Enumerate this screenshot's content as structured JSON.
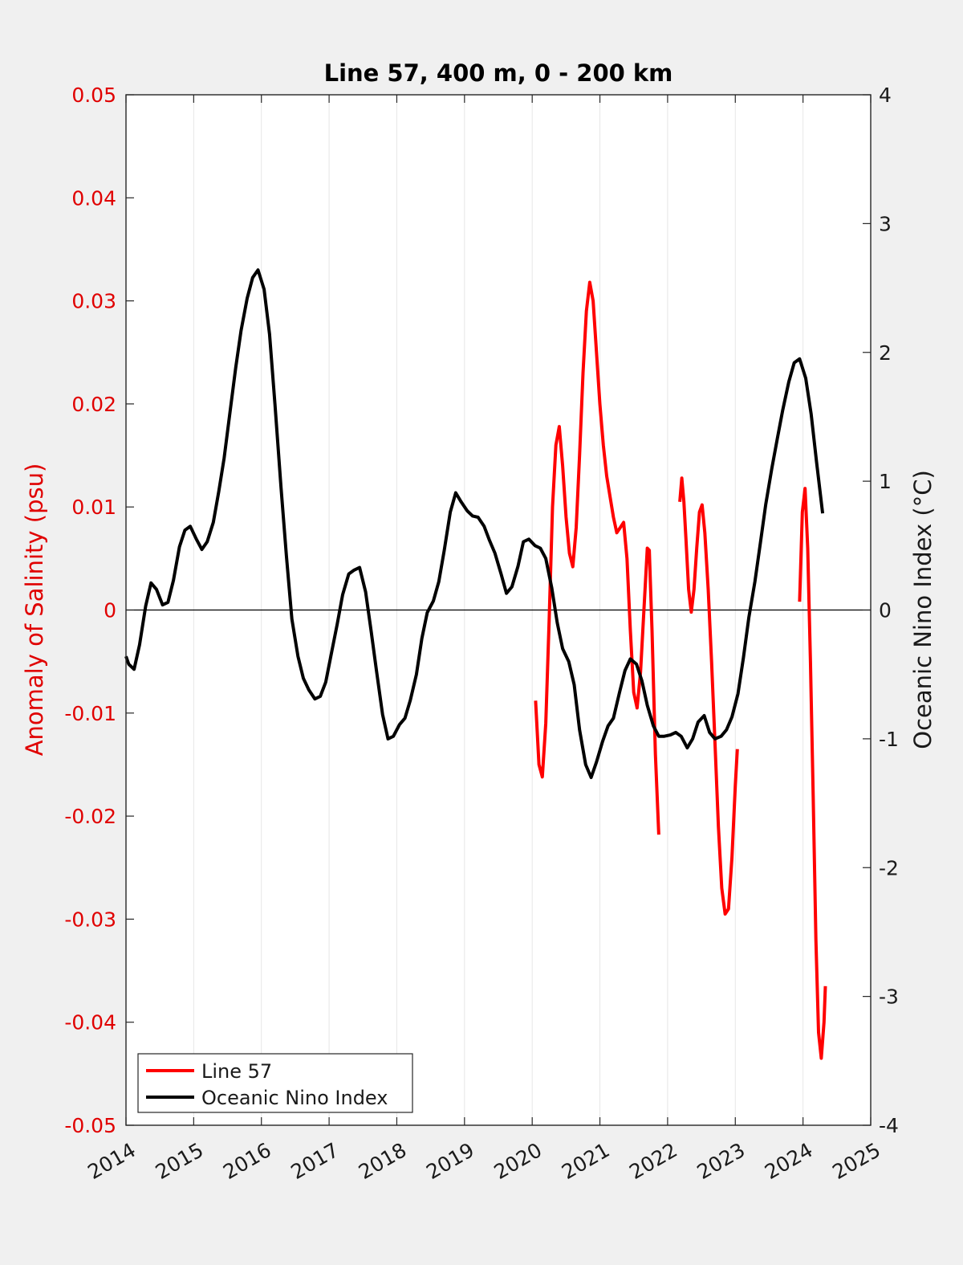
{
  "chart_data": {
    "type": "line",
    "title": "Line 57, 400 m, 0 - 200 km",
    "xlim": [
      2014,
      2025
    ],
    "x_ticks": [
      "2014",
      "2015",
      "2016",
      "2017",
      "2018",
      "2019",
      "2020",
      "2021",
      "2022",
      "2023",
      "2024",
      "2025"
    ],
    "y_left": {
      "label": "Anomaly of Salinity (psu)",
      "lim": [
        -0.05,
        0.05
      ],
      "ticks": [
        "0.05",
        "0.04",
        "0.03",
        "0.02",
        "0.01",
        "0",
        "-0.01",
        "-0.02",
        "-0.03",
        "-0.04",
        "-0.05"
      ],
      "tick_values": [
        0.05,
        0.04,
        0.03,
        0.02,
        0.01,
        0,
        -0.01,
        -0.02,
        -0.03,
        -0.04,
        -0.05
      ],
      "color": "#e00000"
    },
    "y_right": {
      "label": "Oceanic Nino Index (°C)",
      "lim": [
        -4,
        4
      ],
      "ticks": [
        "4",
        "3",
        "2",
        "1",
        "0",
        "-1",
        "-2",
        "-3",
        "-4"
      ],
      "tick_values": [
        4,
        3,
        2,
        1,
        0,
        -1,
        -2,
        -3,
        -4
      ],
      "color": "#1a1a1a"
    },
    "grid": "vertical",
    "legend_position": "bottom-left",
    "series": [
      {
        "name": "Line 57",
        "axis": "left",
        "color": "#ff0000",
        "segments": [
          [
            [
              2020.05,
              -0.0088
            ],
            [
              2020.1,
              -0.015
            ],
            [
              2020.15,
              -0.0162
            ],
            [
              2020.2,
              -0.011
            ],
            [
              2020.25,
              -0.001
            ],
            [
              2020.3,
              0.01
            ],
            [
              2020.35,
              0.016
            ],
            [
              2020.4,
              0.0178
            ],
            [
              2020.45,
              0.014
            ],
            [
              2020.5,
              0.009
            ],
            [
              2020.55,
              0.0055
            ],
            [
              2020.6,
              0.0042
            ],
            [
              2020.65,
              0.008
            ],
            [
              2020.7,
              0.015
            ],
            [
              2020.75,
              0.023
            ],
            [
              2020.8,
              0.029
            ],
            [
              2020.85,
              0.0318
            ],
            [
              2020.9,
              0.03
            ],
            [
              2020.95,
              0.025
            ],
            [
              2021.0,
              0.02
            ],
            [
              2021.05,
              0.016
            ],
            [
              2021.1,
              0.013
            ],
            [
              2021.15,
              0.011
            ],
            [
              2021.2,
              0.009
            ],
            [
              2021.25,
              0.0075
            ],
            [
              2021.3,
              0.008
            ],
            [
              2021.35,
              0.0085
            ],
            [
              2021.4,
              0.005
            ],
            [
              2021.45,
              -0.002
            ],
            [
              2021.5,
              -0.008
            ],
            [
              2021.55,
              -0.0095
            ],
            [
              2021.6,
              -0.006
            ],
            [
              2021.65,
              0.0
            ],
            [
              2021.7,
              0.006
            ],
            [
              2021.73,
              0.0058
            ],
            [
              2021.77,
              -0.002
            ],
            [
              2021.82,
              -0.014
            ],
            [
              2021.87,
              -0.0218
            ]
          ],
          [
            [
              2022.18,
              0.0105
            ],
            [
              2022.21,
              0.0128
            ],
            [
              2022.24,
              0.0105
            ],
            [
              2022.27,
              0.007
            ],
            [
              2022.31,
              0.002
            ],
            [
              2022.35,
              -0.0002
            ],
            [
              2022.39,
              0.002
            ],
            [
              2022.43,
              0.006
            ],
            [
              2022.47,
              0.0095
            ],
            [
              2022.51,
              0.0102
            ],
            [
              2022.55,
              0.0075
            ],
            [
              2022.6,
              0.002
            ],
            [
              2022.65,
              -0.005
            ],
            [
              2022.7,
              -0.013
            ],
            [
              2022.75,
              -0.021
            ],
            [
              2022.8,
              -0.027
            ],
            [
              2022.85,
              -0.0295
            ],
            [
              2022.9,
              -0.029
            ],
            [
              2022.95,
              -0.024
            ],
            [
              2023.0,
              -0.017
            ],
            [
              2023.03,
              -0.0135
            ]
          ],
          [
            [
              2023.95,
              0.0008
            ],
            [
              2023.99,
              0.0095
            ],
            [
              2024.03,
              0.0118
            ],
            [
              2024.07,
              0.006
            ],
            [
              2024.11,
              -0.005
            ],
            [
              2024.15,
              -0.018
            ],
            [
              2024.19,
              -0.032
            ],
            [
              2024.23,
              -0.041
            ],
            [
              2024.27,
              -0.0435
            ],
            [
              2024.31,
              -0.04
            ],
            [
              2024.33,
              -0.0365
            ]
          ]
        ]
      },
      {
        "name": "Oceanic Nino Index",
        "axis": "right",
        "color": "#000000",
        "segments": [
          [
            [
              2014.0,
              -0.36
            ],
            [
              2014.04,
              -0.42
            ],
            [
              2014.12,
              -0.46
            ],
            [
              2014.2,
              -0.27
            ],
            [
              2014.29,
              0.03
            ],
            [
              2014.37,
              0.21
            ],
            [
              2014.45,
              0.16
            ],
            [
              2014.54,
              0.04
            ],
            [
              2014.62,
              0.06
            ],
            [
              2014.7,
              0.23
            ],
            [
              2014.79,
              0.49
            ],
            [
              2014.87,
              0.62
            ],
            [
              2014.95,
              0.65
            ],
            [
              2015.04,
              0.55
            ],
            [
              2015.12,
              0.47
            ],
            [
              2015.2,
              0.53
            ],
            [
              2015.29,
              0.68
            ],
            [
              2015.37,
              0.92
            ],
            [
              2015.45,
              1.18
            ],
            [
              2015.54,
              1.55
            ],
            [
              2015.62,
              1.88
            ],
            [
              2015.7,
              2.17
            ],
            [
              2015.79,
              2.42
            ],
            [
              2015.87,
              2.58
            ],
            [
              2015.95,
              2.64
            ],
            [
              2016.04,
              2.49
            ],
            [
              2016.12,
              2.14
            ],
            [
              2016.2,
              1.6
            ],
            [
              2016.29,
              0.95
            ],
            [
              2016.37,
              0.42
            ],
            [
              2016.45,
              -0.07
            ],
            [
              2016.54,
              -0.36
            ],
            [
              2016.62,
              -0.53
            ],
            [
              2016.7,
              -0.62
            ],
            [
              2016.79,
              -0.69
            ],
            [
              2016.87,
              -0.67
            ],
            [
              2016.95,
              -0.56
            ],
            [
              2017.04,
              -0.32
            ],
            [
              2017.12,
              -0.11
            ],
            [
              2017.2,
              0.12
            ],
            [
              2017.29,
              0.28
            ],
            [
              2017.37,
              0.31
            ],
            [
              2017.45,
              0.33
            ],
            [
              2017.54,
              0.14
            ],
            [
              2017.62,
              -0.16
            ],
            [
              2017.7,
              -0.47
            ],
            [
              2017.79,
              -0.81
            ],
            [
              2017.87,
              -1.0
            ],
            [
              2017.95,
              -0.98
            ],
            [
              2018.04,
              -0.89
            ],
            [
              2018.12,
              -0.84
            ],
            [
              2018.2,
              -0.7
            ],
            [
              2018.29,
              -0.5
            ],
            [
              2018.37,
              -0.22
            ],
            [
              2018.45,
              -0.02
            ],
            [
              2018.54,
              0.07
            ],
            [
              2018.62,
              0.22
            ],
            [
              2018.7,
              0.46
            ],
            [
              2018.79,
              0.76
            ],
            [
              2018.87,
              0.91
            ],
            [
              2018.95,
              0.84
            ],
            [
              2019.04,
              0.77
            ],
            [
              2019.12,
              0.73
            ],
            [
              2019.2,
              0.72
            ],
            [
              2019.29,
              0.65
            ],
            [
              2019.37,
              0.54
            ],
            [
              2019.45,
              0.44
            ],
            [
              2019.54,
              0.28
            ],
            [
              2019.62,
              0.13
            ],
            [
              2019.7,
              0.18
            ],
            [
              2019.79,
              0.34
            ],
            [
              2019.87,
              0.53
            ],
            [
              2019.95,
              0.55
            ],
            [
              2020.04,
              0.5
            ],
            [
              2020.12,
              0.48
            ],
            [
              2020.2,
              0.4
            ],
            [
              2020.29,
              0.17
            ],
            [
              2020.37,
              -0.1
            ],
            [
              2020.45,
              -0.3
            ],
            [
              2020.54,
              -0.4
            ],
            [
              2020.62,
              -0.58
            ],
            [
              2020.7,
              -0.93
            ],
            [
              2020.79,
              -1.2
            ],
            [
              2020.87,
              -1.3
            ],
            [
              2020.95,
              -1.18
            ],
            [
              2021.04,
              -1.02
            ],
            [
              2021.12,
              -0.9
            ],
            [
              2021.2,
              -0.84
            ],
            [
              2021.29,
              -0.64
            ],
            [
              2021.37,
              -0.47
            ],
            [
              2021.45,
              -0.38
            ],
            [
              2021.54,
              -0.42
            ],
            [
              2021.62,
              -0.55
            ],
            [
              2021.7,
              -0.74
            ],
            [
              2021.79,
              -0.9
            ],
            [
              2021.87,
              -0.98
            ],
            [
              2021.95,
              -0.98
            ],
            [
              2022.04,
              -0.97
            ],
            [
              2022.12,
              -0.95
            ],
            [
              2022.2,
              -0.98
            ],
            [
              2022.29,
              -1.07
            ],
            [
              2022.37,
              -1.0
            ],
            [
              2022.45,
              -0.87
            ],
            [
              2022.54,
              -0.82
            ],
            [
              2022.62,
              -0.95
            ],
            [
              2022.7,
              -1.0
            ],
            [
              2022.79,
              -0.98
            ],
            [
              2022.87,
              -0.93
            ],
            [
              2022.95,
              -0.83
            ],
            [
              2023.04,
              -0.65
            ],
            [
              2023.12,
              -0.37
            ],
            [
              2023.2,
              -0.06
            ],
            [
              2023.29,
              0.22
            ],
            [
              2023.37,
              0.52
            ],
            [
              2023.45,
              0.82
            ],
            [
              2023.54,
              1.1
            ],
            [
              2023.62,
              1.33
            ],
            [
              2023.7,
              1.55
            ],
            [
              2023.79,
              1.77
            ],
            [
              2023.87,
              1.92
            ],
            [
              2023.95,
              1.95
            ],
            [
              2024.04,
              1.8
            ],
            [
              2024.12,
              1.52
            ],
            [
              2024.2,
              1.15
            ],
            [
              2024.29,
              0.75
            ]
          ]
        ]
      }
    ]
  }
}
